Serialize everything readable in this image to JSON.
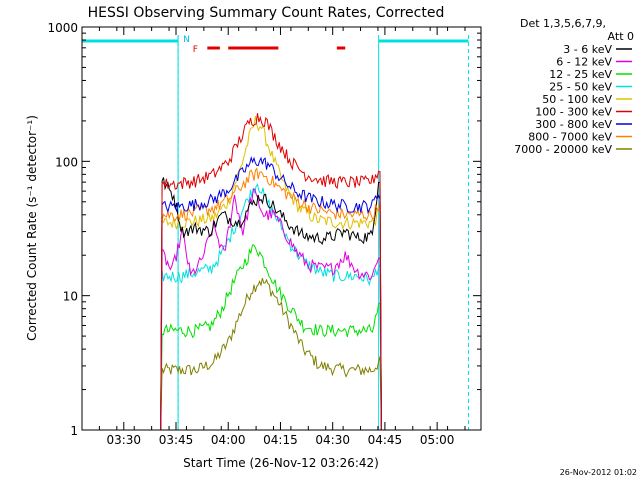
{
  "chart_data": {
    "type": "line",
    "title": "HESSI Observing Summary Count Rates, Corrected",
    "xlabel": "Start Time (26-Nov-12 03:26:42)",
    "ylabel": "Corrected Count Rate (s⁻¹ detector⁻¹)",
    "y_scale": "log",
    "ylim": [
      1,
      1000
    ],
    "x_ticks": [
      "03:30",
      "03:45",
      "04:00",
      "04:15",
      "04:30",
      "04:45",
      "05:00"
    ],
    "y_ticks": [
      "1",
      "10",
      "100",
      "1000"
    ],
    "legend_header": [
      "Det 1,3,5,6,7,9,",
      "Att 0"
    ],
    "legend_position": "top-right, outside plot",
    "footer_date": "26-Nov-2012 01:02",
    "flag_labels": {
      "night": "N",
      "flare": "F"
    },
    "series": [
      {
        "name": "3 - 6 keV",
        "color": "#000000",
        "values": [
          [
            3.67,
            0
          ],
          [
            3.69,
            70
          ],
          [
            3.74,
            55
          ],
          [
            3.78,
            30
          ],
          [
            3.85,
            32
          ],
          [
            3.91,
            30
          ],
          [
            3.97,
            40
          ],
          [
            4.0,
            38
          ],
          [
            4.05,
            35
          ],
          [
            4.1,
            45
          ],
          [
            4.15,
            55
          ],
          [
            4.2,
            50
          ],
          [
            4.25,
            40
          ],
          [
            4.3,
            33
          ],
          [
            4.36,
            28
          ],
          [
            4.42,
            27
          ],
          [
            4.48,
            27
          ],
          [
            4.56,
            30
          ],
          [
            4.62,
            27
          ],
          [
            4.69,
            28
          ],
          [
            4.72,
            75
          ],
          [
            4.74,
            0
          ]
        ]
      },
      {
        "name": "6 - 12 keV",
        "color": "#e000e0",
        "values": [
          [
            3.67,
            0
          ],
          [
            3.69,
            20
          ],
          [
            3.73,
            15
          ],
          [
            3.78,
            30
          ],
          [
            3.82,
            14
          ],
          [
            3.87,
            18
          ],
          [
            3.93,
            33
          ],
          [
            3.98,
            20
          ],
          [
            4.03,
            55
          ],
          [
            4.07,
            30
          ],
          [
            4.12,
            60
          ],
          [
            4.17,
            40
          ],
          [
            4.22,
            40
          ],
          [
            4.27,
            30
          ],
          [
            4.32,
            22
          ],
          [
            4.38,
            17
          ],
          [
            4.44,
            16
          ],
          [
            4.5,
            16
          ],
          [
            4.56,
            20
          ],
          [
            4.62,
            15
          ],
          [
            4.69,
            14
          ],
          [
            4.72,
            20
          ],
          [
            4.74,
            0
          ]
        ]
      },
      {
        "name": "12 - 25 keV",
        "color": "#00e000",
        "values": [
          [
            3.67,
            0
          ],
          [
            3.69,
            5.5
          ],
          [
            3.76,
            5.5
          ],
          [
            3.85,
            5.5
          ],
          [
            3.92,
            6
          ],
          [
            3.97,
            8
          ],
          [
            4.02,
            12
          ],
          [
            4.08,
            18
          ],
          [
            4.13,
            24
          ],
          [
            4.18,
            17
          ],
          [
            4.24,
            11
          ],
          [
            4.3,
            8
          ],
          [
            4.36,
            6
          ],
          [
            4.44,
            5.5
          ],
          [
            4.52,
            5.5
          ],
          [
            4.62,
            5.5
          ],
          [
            4.69,
            5.5
          ],
          [
            4.72,
            8
          ],
          [
            4.74,
            0
          ]
        ]
      },
      {
        "name": "25 - 50 keV",
        "color": "#00e0e0",
        "values": [
          [
            3.67,
            0
          ],
          [
            3.69,
            14
          ],
          [
            3.77,
            14
          ],
          [
            3.85,
            15
          ],
          [
            3.92,
            16
          ],
          [
            3.98,
            22
          ],
          [
            4.04,
            35
          ],
          [
            4.1,
            55
          ],
          [
            4.14,
            70
          ],
          [
            4.18,
            52
          ],
          [
            4.24,
            36
          ],
          [
            4.3,
            24
          ],
          [
            4.36,
            18
          ],
          [
            4.44,
            15
          ],
          [
            4.52,
            14
          ],
          [
            4.62,
            14
          ],
          [
            4.69,
            13
          ],
          [
            4.72,
            17
          ],
          [
            4.74,
            0
          ]
        ]
      },
      {
        "name": "50 - 100 keV",
        "color": "#e0c000",
        "values": [
          [
            3.67,
            0
          ],
          [
            3.69,
            35
          ],
          [
            3.76,
            35
          ],
          [
            3.85,
            36
          ],
          [
            3.93,
            38
          ],
          [
            4.0,
            50
          ],
          [
            4.06,
            90
          ],
          [
            4.1,
            150
          ],
          [
            4.13,
            200
          ],
          [
            4.16,
            180
          ],
          [
            4.21,
            110
          ],
          [
            4.27,
            65
          ],
          [
            4.34,
            45
          ],
          [
            4.42,
            37
          ],
          [
            4.52,
            35
          ],
          [
            4.62,
            35
          ],
          [
            4.69,
            35
          ],
          [
            4.72,
            40
          ],
          [
            4.74,
            0
          ]
        ]
      },
      {
        "name": "100 - 300 keV",
        "color": "#e00000",
        "values": [
          [
            3.67,
            0
          ],
          [
            3.69,
            68
          ],
          [
            3.76,
            68
          ],
          [
            3.85,
            72
          ],
          [
            3.93,
            80
          ],
          [
            4.0,
            100
          ],
          [
            4.06,
            150
          ],
          [
            4.1,
            195
          ],
          [
            4.14,
            215
          ],
          [
            4.18,
            200
          ],
          [
            4.23,
            145
          ],
          [
            4.3,
            100
          ],
          [
            4.37,
            80
          ],
          [
            4.45,
            72
          ],
          [
            4.55,
            70
          ],
          [
            4.65,
            70
          ],
          [
            4.69,
            72
          ],
          [
            4.72,
            85
          ],
          [
            4.74,
            0
          ]
        ]
      },
      {
        "name": "300 - 800 keV",
        "color": "#0000e0",
        "values": [
          [
            3.67,
            0
          ],
          [
            3.69,
            46
          ],
          [
            3.76,
            46
          ],
          [
            3.85,
            48
          ],
          [
            3.93,
            52
          ],
          [
            4.0,
            62
          ],
          [
            4.06,
            80
          ],
          [
            4.11,
            98
          ],
          [
            4.15,
            102
          ],
          [
            4.19,
            95
          ],
          [
            4.25,
            75
          ],
          [
            4.32,
            60
          ],
          [
            4.4,
            52
          ],
          [
            4.5,
            48
          ],
          [
            4.6,
            46
          ],
          [
            4.69,
            47
          ],
          [
            4.72,
            58
          ],
          [
            4.74,
            0
          ]
        ]
      },
      {
        "name": "800 - 7000 keV",
        "color": "#ff8000",
        "values": [
          [
            3.67,
            0
          ],
          [
            3.69,
            40
          ],
          [
            3.76,
            40
          ],
          [
            3.85,
            42
          ],
          [
            3.93,
            45
          ],
          [
            4.0,
            52
          ],
          [
            4.06,
            65
          ],
          [
            4.11,
            78
          ],
          [
            4.15,
            82
          ],
          [
            4.19,
            76
          ],
          [
            4.25,
            62
          ],
          [
            4.32,
            52
          ],
          [
            4.4,
            45
          ],
          [
            4.5,
            41
          ],
          [
            4.6,
            40
          ],
          [
            4.69,
            40
          ],
          [
            4.72,
            48
          ],
          [
            4.74,
            0
          ]
        ]
      },
      {
        "name": "7000 - 20000 keV",
        "color": "#808000",
        "values": [
          [
            3.67,
            0
          ],
          [
            3.69,
            2.8
          ],
          [
            3.76,
            2.8
          ],
          [
            3.85,
            2.8
          ],
          [
            3.93,
            3.2
          ],
          [
            4.0,
            4.5
          ],
          [
            4.06,
            7.5
          ],
          [
            4.11,
            11
          ],
          [
            4.15,
            13
          ],
          [
            4.19,
            12
          ],
          [
            4.24,
            9
          ],
          [
            4.3,
            6
          ],
          [
            4.36,
            4
          ],
          [
            4.44,
            3
          ],
          [
            4.55,
            2.8
          ],
          [
            4.65,
            2.8
          ],
          [
            4.69,
            2.8
          ],
          [
            4.72,
            3.2
          ],
          [
            4.74,
            0
          ]
        ]
      }
    ]
  }
}
